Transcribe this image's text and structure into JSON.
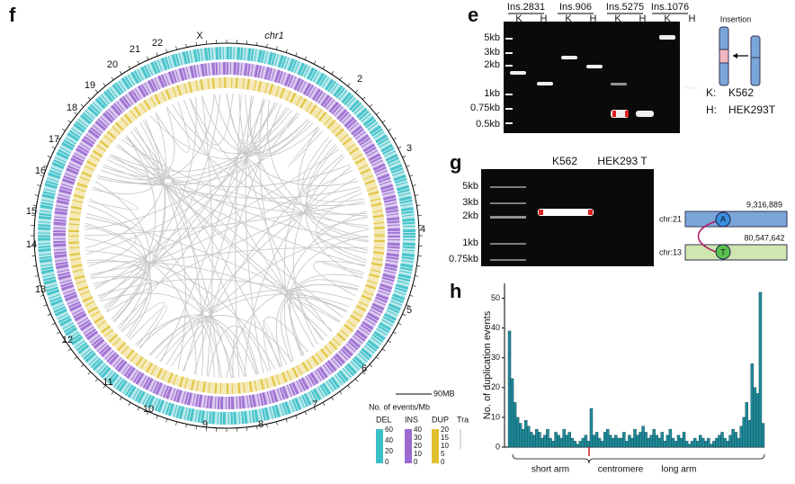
{
  "panels": {
    "f": "f",
    "e": "e",
    "g": "g",
    "h": "h"
  },
  "circos": {
    "chromosomes": [
      "chr1",
      "2",
      "3",
      "4",
      "5",
      "6",
      "7",
      "8",
      "9",
      "10",
      "11",
      "12",
      "13",
      "14",
      "15",
      "16",
      "17",
      "18",
      "19",
      "20",
      "21",
      "22",
      "X"
    ],
    "scale_bar": "90MB",
    "legend_title": "No. of events/Mb",
    "tracks": [
      {
        "name": "DEL",
        "color": "#3cc0c8",
        "ticks": [
          60,
          40,
          20,
          0
        ]
      },
      {
        "name": "INS",
        "color": "#9a6ad0",
        "ticks": [
          40,
          30,
          20,
          10,
          0
        ]
      },
      {
        "name": "DUP",
        "color": "#e0c030",
        "ticks": [
          20,
          15,
          10,
          5,
          0
        ]
      },
      {
        "name": "Tra",
        "color": "#bbbbbb"
      }
    ]
  },
  "gel_e": {
    "lanes": [
      "Ins.2831",
      "Ins.906",
      "Ins.5275",
      "Ins.1076"
    ],
    "lane_samples": [
      "K",
      "H",
      "K",
      "H",
      "K",
      "H",
      "K",
      "H"
    ],
    "ladder": [
      "5kb",
      "3kb",
      "2kb",
      "1kb",
      "0.75kb",
      "0.5kb"
    ],
    "insertion": "Insertion",
    "key": [
      [
        "K:",
        "K562"
      ],
      [
        "H:",
        "HEK293T"
      ]
    ]
  },
  "gel_g": {
    "samples": [
      "K562",
      "HEK293 T"
    ],
    "ladder": [
      "5kb",
      "3kb",
      "2kb",
      "1kb",
      "0.75kb"
    ],
    "junction": [
      {
        "chrom": "chr:21",
        "base": "A",
        "position": "9,316,889"
      },
      {
        "chrom": "chr:13",
        "base": "T",
        "position": "80,547,642"
      }
    ]
  },
  "chart_data": {
    "type": "bar",
    "ylabel": "No. of duplication events",
    "color": "#1f8a9a",
    "categories": [
      null,
      null,
      null,
      null,
      null,
      null,
      null,
      null,
      null,
      null,
      null,
      null,
      null,
      null,
      null,
      null,
      null,
      null,
      null,
      null,
      null,
      null,
      null,
      null,
      null,
      null,
      null,
      null,
      null,
      null,
      null,
      null,
      null,
      null,
      null,
      null,
      null,
      null,
      null,
      null,
      null,
      null,
      null,
      null,
      null,
      null,
      null,
      null,
      null,
      null,
      null,
      null,
      null,
      null,
      null,
      null,
      null,
      null,
      null,
      null,
      null,
      null,
      null,
      null,
      null,
      null,
      null,
      null,
      null,
      null,
      null,
      null,
      null,
      null,
      null,
      null,
      null,
      null,
      null,
      null,
      null,
      null,
      null,
      null,
      null,
      null,
      null,
      null,
      null,
      null,
      null,
      null,
      null,
      null
    ],
    "values": [
      39,
      23,
      15,
      10,
      8,
      6,
      9,
      7,
      5,
      4,
      6,
      5,
      3,
      4,
      6,
      3,
      2,
      5,
      4,
      3,
      6,
      4,
      5,
      3,
      2,
      1,
      2,
      3,
      4,
      2,
      13,
      4,
      5,
      3,
      2,
      5,
      6,
      4,
      3,
      4,
      3,
      3,
      5,
      2,
      4,
      3,
      6,
      4,
      5,
      7,
      5,
      3,
      4,
      6,
      4,
      3,
      5,
      2,
      4,
      6,
      3,
      2,
      4,
      3,
      5,
      2,
      1,
      2,
      3,
      2,
      4,
      3,
      2,
      3,
      1,
      2,
      3,
      4,
      5,
      3,
      2,
      4,
      6,
      5,
      3,
      7,
      10,
      15,
      9,
      28,
      20,
      18,
      52,
      8
    ],
    "ylim": [
      0,
      55
    ],
    "yticks": [
      0,
      10,
      20,
      30,
      40,
      50
    ],
    "annotations": [
      "short arm",
      "centromere",
      "long arm"
    ]
  }
}
